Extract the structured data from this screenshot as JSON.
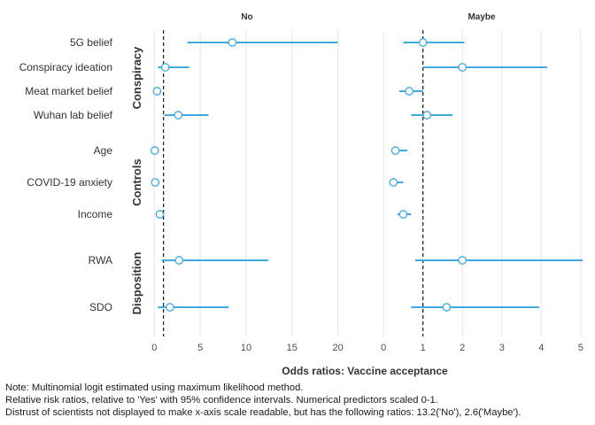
{
  "chart_data": {
    "type": "forest",
    "facets": [
      "No",
      "Maybe"
    ],
    "xlabel": "Odds ratios: Vaccine acceptance",
    "reference_line": 1,
    "xlim": {
      "No": [
        -0.8,
        21
      ],
      "Maybe": [
        -0.05,
        5.05
      ]
    },
    "xticks": {
      "No": [
        0,
        5,
        10,
        15,
        20
      ],
      "Maybe": [
        0,
        1,
        2,
        3,
        4,
        5
      ]
    },
    "groups": [
      {
        "name": "Conspiracy",
        "items": [
          {
            "label": "5G belief",
            "No": {
              "est": 8.5,
              "lo": 3.6,
              "hi": 20.0
            },
            "Maybe": {
              "est": 1.0,
              "lo": 0.5,
              "hi": 2.05
            }
          },
          {
            "label": "Conspiracy ideation",
            "No": {
              "est": 1.2,
              "lo": 0.4,
              "hi": 3.8
            },
            "Maybe": {
              "est": 2.0,
              "lo": 1.0,
              "hi": 4.15
            }
          },
          {
            "label": "Meat market belief",
            "No": {
              "est": 0.3,
              "lo": 0.15,
              "hi": 0.5
            },
            "Maybe": {
              "est": 0.65,
              "lo": 0.4,
              "hi": 1.0
            }
          },
          {
            "label": "Wuhan lab belief",
            "No": {
              "est": 2.6,
              "lo": 1.1,
              "hi": 5.9
            },
            "Maybe": {
              "est": 1.1,
              "lo": 0.7,
              "hi": 1.75
            }
          }
        ]
      },
      {
        "name": "Controls",
        "items": [
          {
            "label": "Age",
            "No": {
              "est": 0.05,
              "lo": -0.05,
              "hi": 0.15
            },
            "Maybe": {
              "est": 0.3,
              "lo": 0.2,
              "hi": 0.6
            }
          },
          {
            "label": "COVID-19 anxiety",
            "No": {
              "est": 0.1,
              "lo": 0.0,
              "hi": 0.2
            },
            "Maybe": {
              "est": 0.25,
              "lo": 0.2,
              "hi": 0.5
            }
          },
          {
            "label": "Income",
            "No": {
              "est": 0.6,
              "lo": 0.3,
              "hi": 1.0
            },
            "Maybe": {
              "est": 0.5,
              "lo": 0.35,
              "hi": 0.7
            }
          }
        ]
      },
      {
        "name": "Disposition",
        "items": [
          {
            "label": "RWA",
            "No": {
              "est": 2.7,
              "lo": 0.8,
              "hi": 12.4
            },
            "Maybe": {
              "est": 2.0,
              "lo": 0.8,
              "hi": 5.05
            }
          },
          {
            "label": "SDO",
            "No": {
              "est": 1.7,
              "lo": 0.4,
              "hi": 8.1
            },
            "Maybe": {
              "est": 1.6,
              "lo": 0.7,
              "hi": 3.95
            }
          }
        ]
      }
    ],
    "colors": {
      "interval": "#3fa9e0",
      "point_fill": "#ffffff",
      "point_stroke": "#3fa9e0",
      "grid": "#e6e6e6",
      "reference": "#000000",
      "text": "#333333"
    }
  },
  "notes": [
    "Note: Multinomial logit estimated using maximum likelihood method.",
    "Relative risk ratios, relative to 'Yes' with 95% confidence intervals. Numerical predictors scaled 0-1.",
    "Distrust of scientists not displayed to make x-axis scale readable, but has the following ratios: 13.2('No'), 2.6('Maybe')."
  ]
}
